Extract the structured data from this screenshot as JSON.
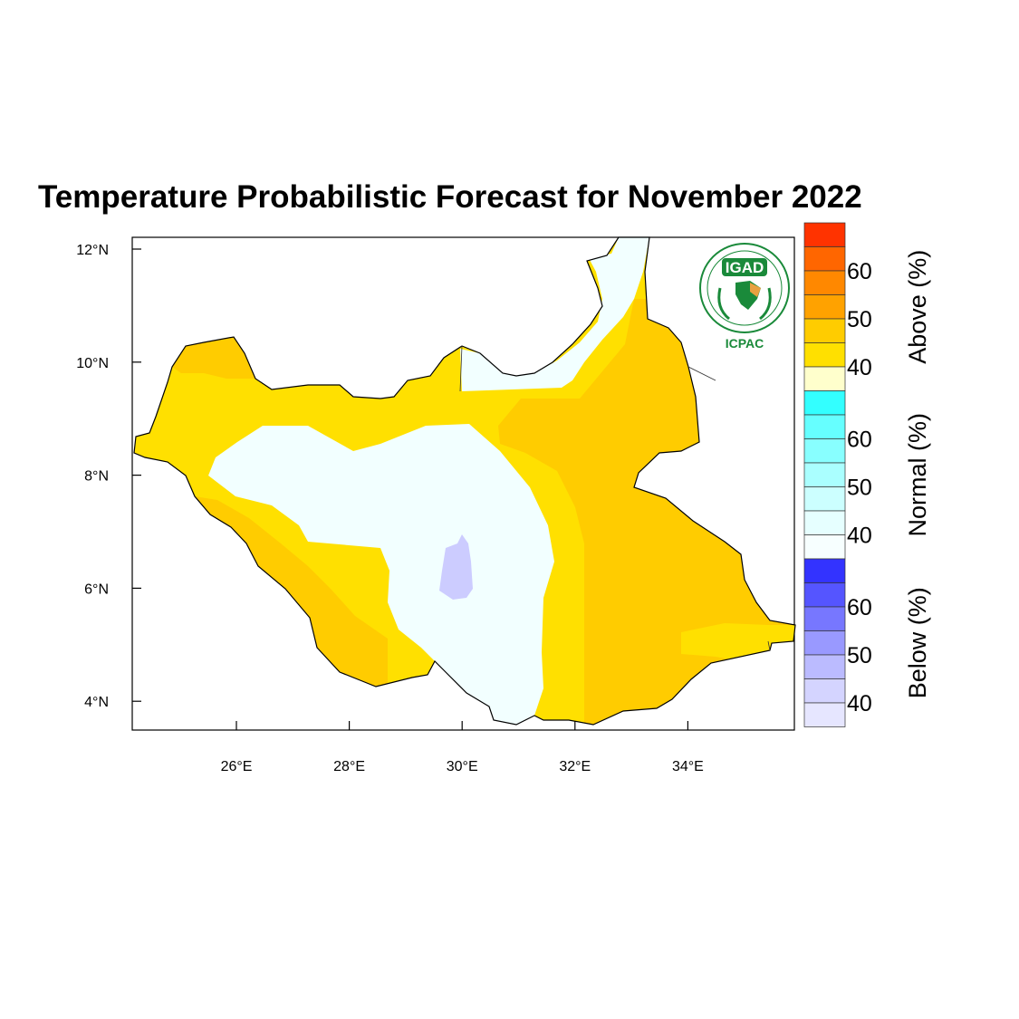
{
  "title": "Temperature Probabilistic Forecast for November 2022",
  "axes": {
    "lat_ticks": [
      {
        "value": 12,
        "label": "12°N"
      },
      {
        "value": 10,
        "label": "10°N"
      },
      {
        "value": 8,
        "label": "8°N"
      },
      {
        "value": 6,
        "label": "6°N"
      },
      {
        "value": 4,
        "label": "4°N"
      }
    ],
    "lon_ticks": [
      {
        "value": 26,
        "label": "26°E"
      },
      {
        "value": 28,
        "label": "28°E"
      },
      {
        "value": 30,
        "label": "30°E"
      },
      {
        "value": 32,
        "label": "32°E"
      },
      {
        "value": 34,
        "label": "34°E"
      }
    ],
    "lon_range": [
      24.1,
      35.8
    ],
    "lat_range": [
      3.5,
      12.2
    ]
  },
  "colorbar": {
    "groups": [
      {
        "name": "Above (%)",
        "colors": [
          "#ff3300",
          "#ff6600",
          "#ff8800",
          "#ffa200",
          "#ffcc00",
          "#ffe000",
          "#ffffcc"
        ],
        "tick_labels": [
          "60",
          "50",
          "40"
        ]
      },
      {
        "name": "Normal (%)",
        "colors": [
          "#33ffff",
          "#66ffff",
          "#88ffff",
          "#aaffff",
          "#ccffff",
          "#e6ffff",
          "#f7ffff"
        ],
        "tick_labels": [
          "60",
          "50",
          "40"
        ]
      },
      {
        "name": "Below (%)",
        "colors": [
          "#3333ff",
          "#5555ff",
          "#7777ff",
          "#9999ff",
          "#bbbbff",
          "#d4d4ff",
          "#e6e6ff"
        ],
        "tick_labels": [
          "60",
          "50",
          "40"
        ]
      }
    ]
  },
  "logo": {
    "top_text": "IGAD",
    "bottom_text": "ICPAC"
  },
  "colors": {
    "above_40": "#ffe000",
    "above_45": "#ffcc00",
    "normal_40": "#f2ffff",
    "below_40": "#ccccff",
    "logo_green": "#1a8a3a"
  }
}
